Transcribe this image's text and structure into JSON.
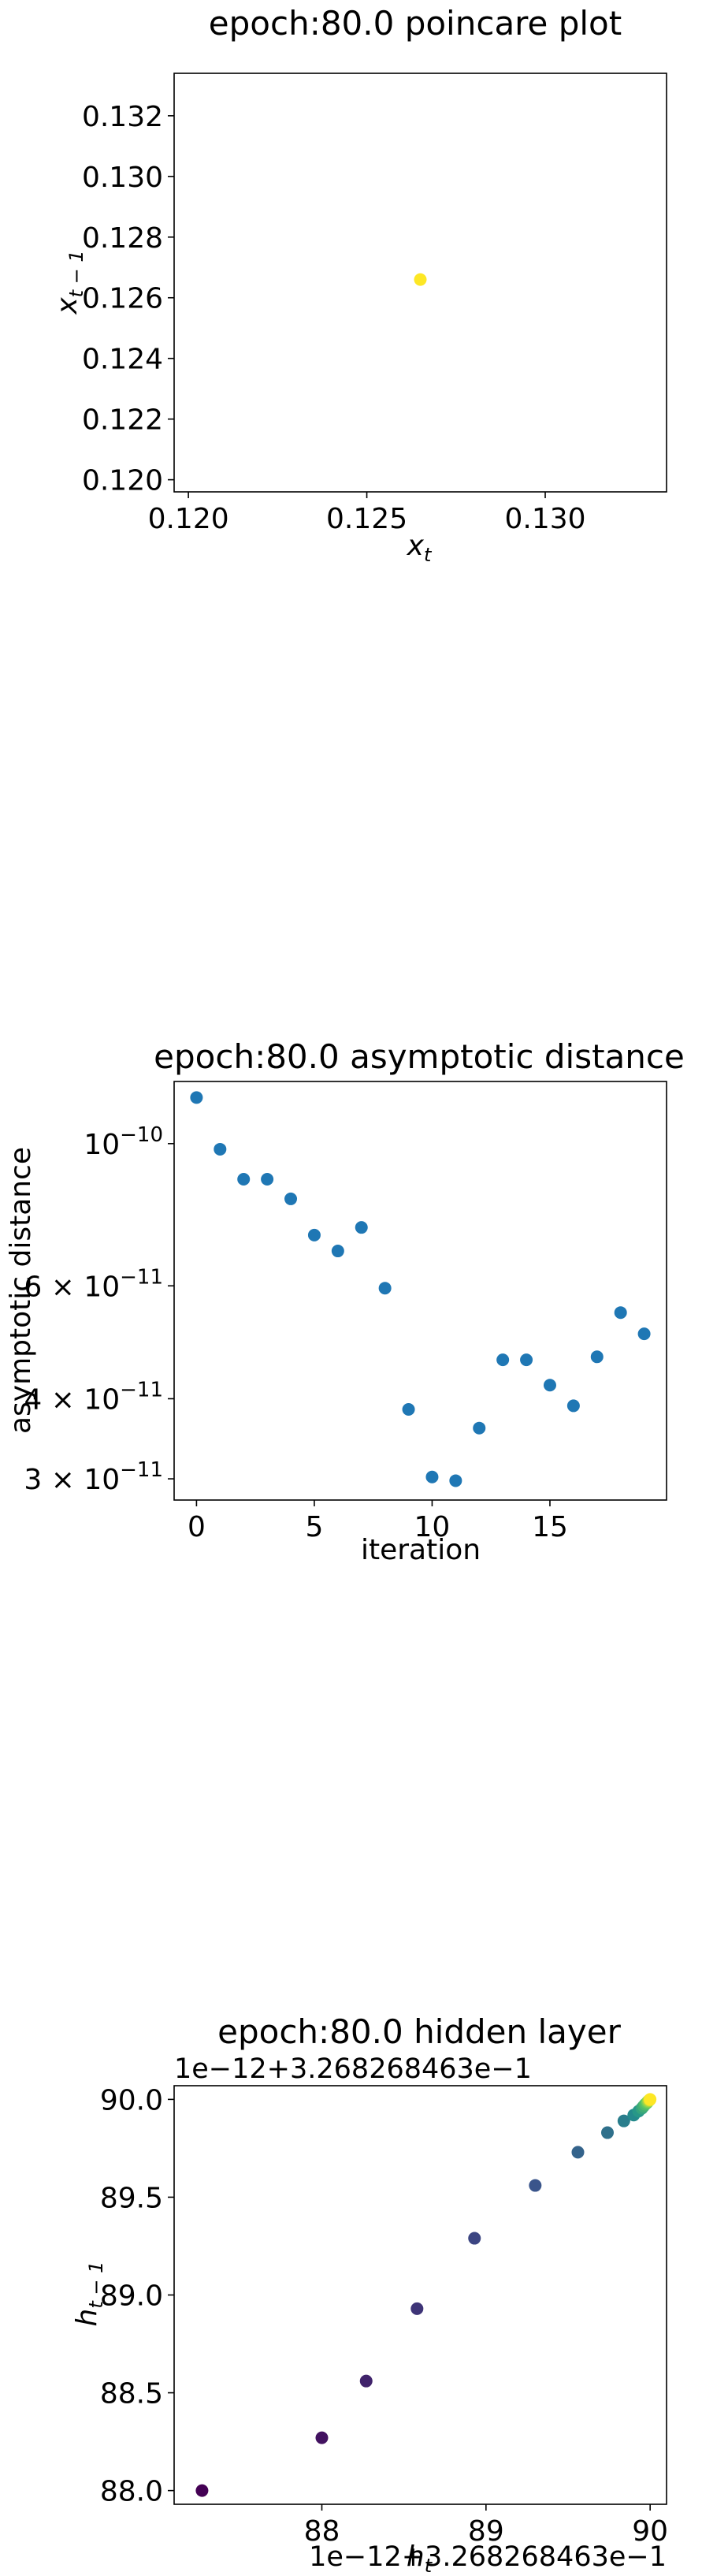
{
  "chart_data": [
    {
      "type": "scatter",
      "title": "epoch:80.0 poincare plot",
      "xlabel": "x_t",
      "ylabel": "x_{t-1}",
      "xlim": [
        0.1196,
        0.1334
      ],
      "ylim": [
        0.1196,
        0.1334
      ],
      "xticks": [
        "0.120",
        "0.125",
        "0.130"
      ],
      "xtick_values": [
        0.12,
        0.125,
        0.13
      ],
      "yticks": [
        "0.120",
        "0.122",
        "0.124",
        "0.126",
        "0.128",
        "0.130",
        "0.132"
      ],
      "ytick_values": [
        0.12,
        0.122,
        0.124,
        0.126,
        0.128,
        0.13,
        0.132
      ],
      "points": [
        {
          "x": 0.1265,
          "y": 0.1266
        }
      ],
      "color": "#fde725",
      "grid": false
    },
    {
      "type": "scatter",
      "title": "epoch:80.0 asymptotic distance",
      "xlabel": "iteration",
      "ylabel": "asymptotic distance",
      "yscale": "log",
      "xlim": [
        -0.95,
        19.95
      ],
      "ylim": [
        2.78e-11,
        1.25e-10
      ],
      "xticks": [
        "0",
        "5",
        "10",
        "15"
      ],
      "xtick_values": [
        0,
        5,
        10,
        15
      ],
      "yticks": [
        {
          "value": 1e-10,
          "base": "10",
          "exp": "−10",
          "coef": ""
        },
        {
          "value": 6e-11,
          "base": "10",
          "exp": "−11",
          "coef": "6 × "
        },
        {
          "value": 4e-11,
          "base": "10",
          "exp": "−11",
          "coef": "4 × "
        },
        {
          "value": 3e-11,
          "base": "10",
          "exp": "−11",
          "coef": "3 × "
        }
      ],
      "x": [
        0,
        1,
        2,
        3,
        4,
        5,
        6,
        7,
        8,
        9,
        10,
        11,
        12,
        13,
        14,
        15,
        16,
        17,
        18,
        19
      ],
      "y": [
        1.18e-10,
        9.8e-11,
        8.8e-11,
        8.8e-11,
        8.2e-11,
        7.2e-11,
        6.8e-11,
        7.4e-11,
        5.95e-11,
        3.85e-11,
        3.02e-11,
        2.98e-11,
        3.6e-11,
        4.6e-11,
        4.6e-11,
        4.2e-11,
        3.9e-11,
        4.65e-11,
        5.45e-11,
        5.05e-11
      ],
      "color": "#1f77b4",
      "grid": false
    },
    {
      "type": "scatter",
      "title": "epoch:80.0 hidden layer",
      "xlabel": "h_t",
      "ylabel": "h_{t-1}",
      "x_offset_label": "1e−12+3.268268463e−1",
      "y_offset_label": "1e−12+3.268268463e−1",
      "xlim": [
        87.1,
        90.1
      ],
      "ylim": [
        87.93,
        90.07
      ],
      "xticks": [
        "88",
        "89",
        "90"
      ],
      "xtick_values": [
        88,
        89,
        90
      ],
      "yticks": [
        "88.0",
        "88.5",
        "89.0",
        "89.5",
        "90.0"
      ],
      "ytick_values": [
        88.0,
        88.5,
        89.0,
        89.5,
        90.0
      ],
      "x": [
        87.27,
        88.0,
        88.27,
        88.58,
        88.93,
        89.3,
        89.56,
        89.74,
        89.84,
        89.9,
        89.93,
        89.95,
        89.96,
        89.97,
        89.98,
        89.985,
        89.99,
        89.995,
        89.998,
        90.0
      ],
      "y": [
        88.0,
        88.27,
        88.56,
        88.93,
        89.29,
        89.56,
        89.73,
        89.83,
        89.89,
        89.92,
        89.94,
        89.955,
        89.965,
        89.975,
        89.982,
        89.988,
        89.992,
        89.996,
        89.998,
        90.0
      ],
      "colormap": "viridis",
      "grid": false
    }
  ]
}
